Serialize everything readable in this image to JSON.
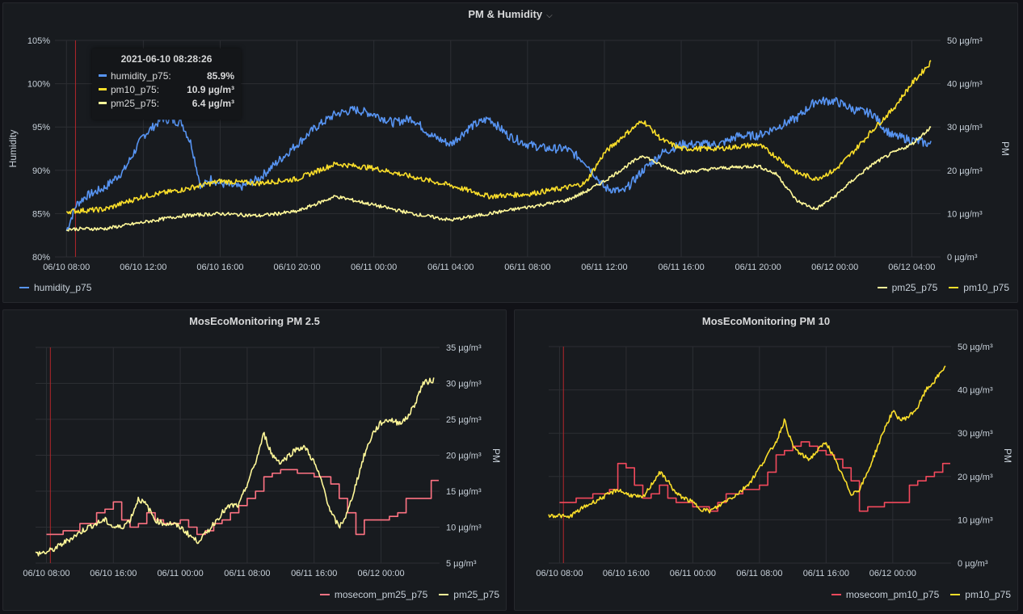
{
  "panels": {
    "top": {
      "title": "PM & Humidity"
    },
    "left": {
      "title": "MosEcoMonitoring PM 2.5"
    },
    "right": {
      "title": "MosEcoMonitoring PM 10"
    }
  },
  "tooltip": {
    "time": "2021-06-10 08:28:26",
    "rows": [
      {
        "name": "humidity_p75:",
        "value": "85.9%",
        "color": "#5794f2"
      },
      {
        "name": "pm10_p75:",
        "value": "10.9 µg/m³",
        "color": "#fade2a"
      },
      {
        "name": "pm25_p75:",
        "value": "6.4 µg/m³",
        "color": "#fff899"
      }
    ]
  },
  "chart_data": [
    {
      "type": "line",
      "title": "PM & Humidity",
      "xlabel": "",
      "ylabel": "Humidity",
      "y2label": "PM",
      "x_ticks": [
        "06/10 08:00",
        "06/10 12:00",
        "06/10 16:00",
        "06/10 20:00",
        "06/11 00:00",
        "06/11 04:00",
        "06/11 08:00",
        "06/11 12:00",
        "06/11 16:00",
        "06/11 20:00",
        "06/12 00:00",
        "06/12 04:00"
      ],
      "y_ticks": [
        "80%",
        "85%",
        "90%",
        "95%",
        "100%",
        "105%"
      ],
      "y2_ticks": [
        "0 µg/m³",
        "10 µg/m³",
        "20 µg/m³",
        "30 µg/m³",
        "40 µg/m³",
        "50 µg/m³"
      ],
      "ylim": [
        80,
        105
      ],
      "y2lim": [
        0,
        50
      ],
      "xlim_hours": [
        -0.6,
        45.5
      ],
      "grid": true,
      "legend_left": [
        "humidity_p75"
      ],
      "legend_right": [
        "pm25_p75",
        "pm10_p75"
      ],
      "series": [
        {
          "name": "humidity_p75",
          "axis": "left",
          "color": "#5794f2",
          "noise": 0.5,
          "x": [
            0,
            0.5,
            1,
            2,
            3,
            4,
            5,
            6,
            6.5,
            7,
            7.5,
            8,
            9,
            10,
            11,
            12,
            13,
            14,
            15,
            16,
            17,
            18,
            19,
            20,
            21,
            22,
            23,
            24,
            25,
            26,
            27,
            28,
            29,
            30,
            31,
            32,
            33,
            34,
            35,
            36,
            37,
            38,
            39,
            40,
            41,
            42,
            42.5,
            43,
            44,
            45
          ],
          "y": [
            83,
            86,
            87,
            88,
            90,
            94,
            96,
            95.5,
            93,
            88,
            89,
            88.5,
            88,
            89,
            91,
            93,
            95,
            96.5,
            97,
            96.5,
            95.5,
            96,
            94,
            93,
            95,
            96,
            94,
            93,
            92.5,
            92.5,
            91,
            88,
            87.5,
            90,
            92,
            93,
            93,
            93,
            94,
            94,
            95,
            96,
            98,
            98,
            97,
            96.5,
            95,
            94,
            93.5,
            93
          ]
        },
        {
          "name": "pm10_p75",
          "axis": "right",
          "color": "#fade2a",
          "noise": 0.6,
          "x": [
            0,
            2,
            4,
            6,
            8,
            10,
            12,
            14,
            16,
            18,
            20,
            22,
            24,
            26,
            27,
            28,
            29,
            30,
            31,
            32,
            34,
            36,
            37,
            38,
            39,
            40,
            41,
            42,
            43,
            44,
            45
          ],
          "y": [
            10.5,
            11,
            14,
            15.5,
            17.5,
            17,
            18,
            21.5,
            20.5,
            18.5,
            16.5,
            14,
            14.5,
            16,
            17,
            24,
            28,
            31.5,
            27,
            25,
            25,
            26,
            23,
            19.5,
            18,
            20,
            24.5,
            29.5,
            34,
            40,
            45
          ]
        },
        {
          "name": "pm25_p75",
          "axis": "right",
          "color": "#fff899",
          "noise": 0.4,
          "x": [
            0,
            1,
            2,
            4,
            6,
            8,
            10,
            12,
            14,
            16,
            18,
            20,
            22,
            24,
            26,
            27,
            28,
            29,
            30,
            31,
            32,
            34,
            36,
            37,
            38,
            39,
            40,
            41,
            42,
            43,
            44,
            45
          ],
          "y": [
            6.4,
            6.5,
            6.5,
            8,
            9.5,
            10,
            9.5,
            10.5,
            14,
            12,
            10,
            8.5,
            10,
            11.5,
            13,
            15,
            17.5,
            20.5,
            23.5,
            21,
            19.5,
            20.5,
            21,
            19,
            13,
            11,
            14,
            18,
            21.5,
            24,
            26,
            30
          ]
        }
      ]
    },
    {
      "type": "line",
      "title": "MosEcoMonitoring PM 2.5",
      "ylabel": "PM",
      "x_ticks": [
        "06/10 08:00",
        "06/10 16:00",
        "06/11 00:00",
        "06/11 08:00",
        "06/11 16:00",
        "06/12 00:00"
      ],
      "y_ticks": [
        "5 µg/m³",
        "10 µg/m³",
        "15 µg/m³",
        "20 µg/m³",
        "25 µg/m³",
        "30 µg/m³",
        "35 µg/m³"
      ],
      "ylim": [
        5,
        35
      ],
      "xlim_hours": [
        -1.3,
        47
      ],
      "grid": true,
      "legend": [
        "mosecom_pm25_p75",
        "pm25_p75"
      ],
      "series": [
        {
          "name": "mosecom_pm25_p75",
          "step": true,
          "color": "#ff7383",
          "x": [
            0,
            2,
            4,
            6,
            7,
            8,
            9,
            10,
            11,
            12,
            13,
            14,
            15,
            16,
            17,
            18,
            19,
            20,
            21,
            22,
            23,
            24,
            25,
            26,
            27,
            28,
            29,
            30,
            31,
            32,
            33,
            34,
            35,
            36,
            37,
            38,
            39,
            40,
            41,
            42,
            43,
            44,
            45,
            46
          ],
          "y": [
            9,
            9.5,
            10.5,
            12,
            12.5,
            13.5,
            11,
            10,
            10.5,
            12,
            11,
            10.5,
            10.5,
            11,
            10,
            9,
            9.5,
            10.5,
            11,
            12,
            13,
            14,
            15,
            17,
            17.5,
            18,
            18,
            17.5,
            17.5,
            17,
            17,
            16,
            14,
            12,
            9,
            11,
            11,
            11,
            11.5,
            12,
            14,
            14,
            14,
            16.5
          ]
        },
        {
          "name": "pm25_p75",
          "color": "#fff899",
          "noise": 0.4,
          "x": [
            -1.3,
            0,
            1,
            3,
            5,
            7,
            8,
            9,
            10,
            11,
            12,
            13,
            14,
            15,
            16,
            17,
            18,
            19,
            20,
            21,
            22,
            23,
            24,
            25,
            26,
            27,
            28,
            29,
            30,
            31,
            32,
            33,
            34,
            35,
            36,
            37,
            38,
            39,
            40,
            41,
            42,
            43,
            44,
            45,
            46.3
          ],
          "y": [
            6.3,
            6.5,
            7,
            8.5,
            10,
            11,
            10,
            10,
            11,
            14,
            13,
            11,
            10.5,
            10.5,
            10,
            9,
            8,
            9,
            10.5,
            12,
            13,
            13,
            16,
            19,
            23,
            20,
            19,
            20,
            21,
            21,
            19,
            16,
            12,
            10,
            12,
            16,
            20,
            23,
            24.5,
            25,
            24.5,
            25,
            27,
            30,
            30.5
          ]
        }
      ]
    },
    {
      "type": "line",
      "title": "MosEcoMonitoring PM 10",
      "ylabel": "PM",
      "x_ticks": [
        "06/10 08:00",
        "06/10 16:00",
        "06/11 00:00",
        "06/11 08:00",
        "06/11 16:00",
        "06/12 00:00"
      ],
      "y_ticks": [
        "0 µg/m³",
        "10 µg/m³",
        "20 µg/m³",
        "30 µg/m³",
        "40 µg/m³",
        "50 µg/m³"
      ],
      "ylim": [
        0,
        50
      ],
      "xlim_hours": [
        -1.3,
        47
      ],
      "grid": true,
      "legend": [
        "mosecom_pm10_p75",
        "pm10_p75"
      ],
      "series": [
        {
          "name": "mosecom_pm10_p75",
          "step": true,
          "color": "#f2495c",
          "x": [
            0,
            2,
            4,
            6,
            7,
            8,
            9,
            10,
            11,
            12,
            13,
            14,
            15,
            16,
            17,
            18,
            19,
            20,
            21,
            22,
            23,
            24,
            25,
            26,
            27,
            28,
            29,
            30,
            31,
            32,
            33,
            34,
            35,
            36,
            37,
            38,
            39,
            40,
            41,
            42,
            43,
            44,
            45,
            46
          ],
          "y": [
            14,
            15,
            16,
            17,
            23,
            22,
            18,
            15,
            16,
            18,
            15,
            14,
            14,
            13,
            13,
            12,
            14,
            16,
            16,
            17,
            17,
            18,
            21,
            25,
            26,
            27,
            28,
            27,
            26,
            25,
            24,
            22,
            19,
            12,
            13,
            13,
            14,
            14,
            14,
            18,
            19,
            20,
            21,
            23
          ]
        },
        {
          "name": "pm10_p75",
          "color": "#fade2a",
          "noise": 0.5,
          "x": [
            -1.3,
            0,
            1,
            3,
            5,
            7,
            8,
            9,
            10,
            11,
            12,
            13,
            14,
            15,
            16,
            17,
            18,
            19,
            20,
            21,
            22,
            23,
            24,
            25,
            26,
            27,
            28,
            29,
            30,
            31,
            32,
            33,
            34,
            35,
            36,
            37,
            38,
            39,
            40,
            41,
            42,
            43,
            44,
            45,
            46.3
          ],
          "y": [
            11,
            11,
            10.5,
            13,
            15,
            17,
            16,
            15.5,
            15,
            18,
            21,
            19,
            16,
            15,
            14,
            12.5,
            12,
            13,
            14.5,
            15.5,
            17,
            19,
            22,
            25,
            28,
            33,
            27,
            25,
            24,
            26,
            28,
            24,
            20,
            16,
            17,
            21,
            26,
            31,
            35,
            33,
            34,
            36,
            40,
            42,
            45.5
          ]
        }
      ]
    }
  ]
}
